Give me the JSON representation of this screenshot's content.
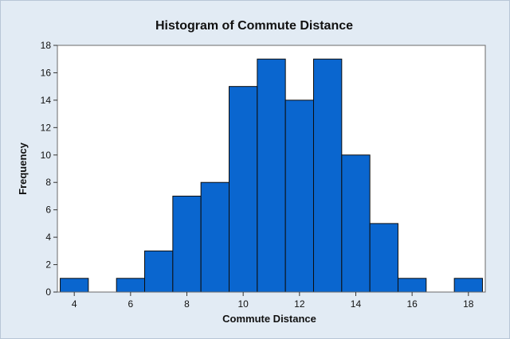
{
  "chart_data": {
    "type": "bar",
    "title": "Histogram of Commute Distance",
    "xlabel": "Commute Distance",
    "ylabel": "Frequency",
    "bin_width": 1,
    "bins": [
      {
        "x": 4,
        "value": 1
      },
      {
        "x": 5,
        "value": 0
      },
      {
        "x": 6,
        "value": 1
      },
      {
        "x": 7,
        "value": 3
      },
      {
        "x": 8,
        "value": 7
      },
      {
        "x": 9,
        "value": 8
      },
      {
        "x": 10,
        "value": 15
      },
      {
        "x": 11,
        "value": 17
      },
      {
        "x": 12,
        "value": 14
      },
      {
        "x": 13,
        "value": 17
      },
      {
        "x": 14,
        "value": 10
      },
      {
        "x": 15,
        "value": 5
      },
      {
        "x": 16,
        "value": 1
      },
      {
        "x": 17,
        "value": 0
      },
      {
        "x": 18,
        "value": 1
      }
    ],
    "xlim": [
      3.4,
      18.6
    ],
    "ylim": [
      0,
      18
    ],
    "x_ticks": [
      4,
      6,
      8,
      10,
      12,
      14,
      16,
      18
    ],
    "y_ticks": [
      0,
      2,
      4,
      6,
      8,
      10,
      12,
      14,
      16,
      18
    ],
    "grid": false,
    "colors": {
      "bar_fill": "#0a66cf",
      "bar_edge": "#0d0d0d",
      "plot_background": "#ffffff",
      "figure_background": "#e2ebf4"
    }
  }
}
